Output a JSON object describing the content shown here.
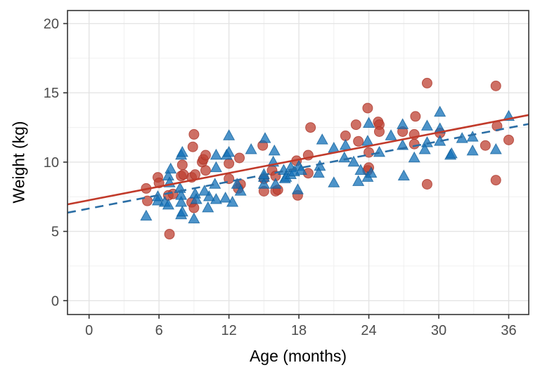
{
  "figure": {
    "background": "#FFFFFF",
    "panel_background": "#FFFFFF",
    "panel_border_color": "#333333",
    "grid_major_color": "#E4E4E4",
    "grid_minor_color": "#F0F0F0",
    "tick_color": "#333333",
    "tick_label_color": "#4D4D4D"
  },
  "chart_data": {
    "type": "scatter",
    "title": "",
    "xlabel": "Age (months)",
    "ylabel": "Weight (kg)",
    "grid": true,
    "legend": "none",
    "x_axis": {
      "range": [
        -1.85,
        37.72
      ],
      "ticks": [
        0,
        6,
        12,
        18,
        24,
        30,
        36
      ],
      "minor_ticks": [
        3,
        9,
        15,
        21,
        27,
        33
      ]
    },
    "y_axis": {
      "range": [
        -1.0,
        20.94
      ],
      "ticks": [
        0,
        5,
        10,
        15,
        20
      ],
      "minor_ticks": [
        2.5,
        7.5,
        12.5,
        17.5
      ]
    },
    "series": [
      {
        "name": "red-circles-group",
        "marker": "circle",
        "color": "#BE4032",
        "stroke": "#A93226",
        "opacity": 0.75,
        "points": [
          [
            4.9,
            8.1
          ],
          [
            5.0,
            7.2
          ],
          [
            5.9,
            8.9
          ],
          [
            6.0,
            8.5
          ],
          [
            6.8,
            7.6
          ],
          [
            7.2,
            7.7
          ],
          [
            6.9,
            4.8
          ],
          [
            7.9,
            9.0
          ],
          [
            8.0,
            9.8
          ],
          [
            8.1,
            9.1
          ],
          [
            8.8,
            8.9
          ],
          [
            8.8,
            7.1
          ],
          [
            9.0,
            6.7
          ],
          [
            9.1,
            9.1
          ],
          [
            9.7,
            10.0
          ],
          [
            9.0,
            12.0
          ],
          [
            8.9,
            11.1
          ],
          [
            9.8,
            10.2
          ],
          [
            10.0,
            9.4
          ],
          [
            10.0,
            10.5
          ],
          [
            12.0,
            9.9
          ],
          [
            12.0,
            8.8
          ],
          [
            12.8,
            8.1
          ],
          [
            12.9,
            10.3
          ],
          [
            13.0,
            8.4
          ],
          [
            14.9,
            11.2
          ],
          [
            15.0,
            8.8
          ],
          [
            15.0,
            7.9
          ],
          [
            15.7,
            9.4
          ],
          [
            16.0,
            9.0
          ],
          [
            16.0,
            7.9
          ],
          [
            16.2,
            8.0
          ],
          [
            17.9,
            7.6
          ],
          [
            17.8,
            10.1
          ],
          [
            18.8,
            10.5
          ],
          [
            18.8,
            9.2
          ],
          [
            19.0,
            12.5
          ],
          [
            22.0,
            11.9
          ],
          [
            22.9,
            12.7
          ],
          [
            23.1,
            11.5
          ],
          [
            23.9,
            13.9
          ],
          [
            23.9,
            9.4
          ],
          [
            24.0,
            10.7
          ],
          [
            24.0,
            9.6
          ],
          [
            24.8,
            12.9
          ],
          [
            24.9,
            12.7
          ],
          [
            24.9,
            12.2
          ],
          [
            26.9,
            12.2
          ],
          [
            27.9,
            12.0
          ],
          [
            27.9,
            11.3
          ],
          [
            28.0,
            13.3
          ],
          [
            29.0,
            15.7
          ],
          [
            29.0,
            8.4
          ],
          [
            30.1,
            12.1
          ],
          [
            34.0,
            11.2
          ],
          [
            34.9,
            15.5
          ],
          [
            35.0,
            12.6
          ],
          [
            34.9,
            8.7
          ],
          [
            36.0,
            11.6
          ]
        ]
      },
      {
        "name": "blue-triangles-group",
        "marker": "triangle",
        "color": "#1170B8",
        "stroke": "#0E5E99",
        "opacity": 0.75,
        "points": [
          [
            4.9,
            6.1
          ],
          [
            5.9,
            7.2
          ],
          [
            5.9,
            7.5
          ],
          [
            6.5,
            7.1
          ],
          [
            6.8,
            9.0
          ],
          [
            6.8,
            6.9
          ],
          [
            6.9,
            8.5
          ],
          [
            7.0,
            9.5
          ],
          [
            7.8,
            8.1
          ],
          [
            7.9,
            10.5
          ],
          [
            7.9,
            7.6
          ],
          [
            7.9,
            7.1
          ],
          [
            7.9,
            6.2
          ],
          [
            8.0,
            6.4
          ],
          [
            9.0,
            5.9
          ],
          [
            9.1,
            7.7
          ],
          [
            9.2,
            7.3
          ],
          [
            10.3,
            7.5
          ],
          [
            8.0,
            10.7
          ],
          [
            10.9,
            10.5
          ],
          [
            10.9,
            9.6
          ],
          [
            10.8,
            8.4
          ],
          [
            9.9,
            7.9
          ],
          [
            10.9,
            7.3
          ],
          [
            11.7,
            7.4
          ],
          [
            10.2,
            6.7
          ],
          [
            11.8,
            10.5
          ],
          [
            12.0,
            11.9
          ],
          [
            12.0,
            10.7
          ],
          [
            12.3,
            7.1
          ],
          [
            12.7,
            8.4
          ],
          [
            13.0,
            7.9
          ],
          [
            13.9,
            10.9
          ],
          [
            15.1,
            11.7
          ],
          [
            15.9,
            10.8
          ],
          [
            15.8,
            10.0
          ],
          [
            15.0,
            8.9
          ],
          [
            15.0,
            9.1
          ],
          [
            15.0,
            8.4
          ],
          [
            16.0,
            8.4
          ],
          [
            16.7,
            9.4
          ],
          [
            16.8,
            8.8
          ],
          [
            16.9,
            8.9
          ],
          [
            17.3,
            9.1
          ],
          [
            17.3,
            9.6
          ],
          [
            17.9,
            8.0
          ],
          [
            18.0,
            9.7
          ],
          [
            17.6,
            9.3
          ],
          [
            18.2,
            9.4
          ],
          [
            19.8,
            9.7
          ],
          [
            19.7,
            9.2
          ],
          [
            20.0,
            11.6
          ],
          [
            21.0,
            11.0
          ],
          [
            22.0,
            11.2
          ],
          [
            21.9,
            10.3
          ],
          [
            22.7,
            10.0
          ],
          [
            21.0,
            8.5
          ],
          [
            23.1,
            8.6
          ],
          [
            23.3,
            9.4
          ],
          [
            23.9,
            8.9
          ],
          [
            24.2,
            9.2
          ],
          [
            24.0,
            12.8
          ],
          [
            23.9,
            11.5
          ],
          [
            24.9,
            10.7
          ],
          [
            25.9,
            11.9
          ],
          [
            26.9,
            12.7
          ],
          [
            26.9,
            11.2
          ],
          [
            27.0,
            9.0
          ],
          [
            27.9,
            10.3
          ],
          [
            29.0,
            12.6
          ],
          [
            29.0,
            11.4
          ],
          [
            28.8,
            10.9
          ],
          [
            30.1,
            13.6
          ],
          [
            30.1,
            12.4
          ],
          [
            30.1,
            11.5
          ],
          [
            31.0,
            10.5
          ],
          [
            31.1,
            10.6
          ],
          [
            32.0,
            11.7
          ],
          [
            32.9,
            11.8
          ],
          [
            32.9,
            10.8
          ],
          [
            34.9,
            10.9
          ],
          [
            36.0,
            13.3
          ]
        ]
      }
    ],
    "fit_lines": [
      {
        "name": "blue-dashed-fit-line",
        "color": "#2B6EA5",
        "style": "dashed",
        "x": [
          -1.85,
          37.72
        ],
        "y": [
          6.35,
          12.75
        ]
      },
      {
        "name": "red-solid-fit-line",
        "color": "#C13A2A",
        "style": "solid",
        "x": [
          -1.85,
          37.72
        ],
        "y": [
          6.95,
          13.4
        ]
      }
    ]
  }
}
